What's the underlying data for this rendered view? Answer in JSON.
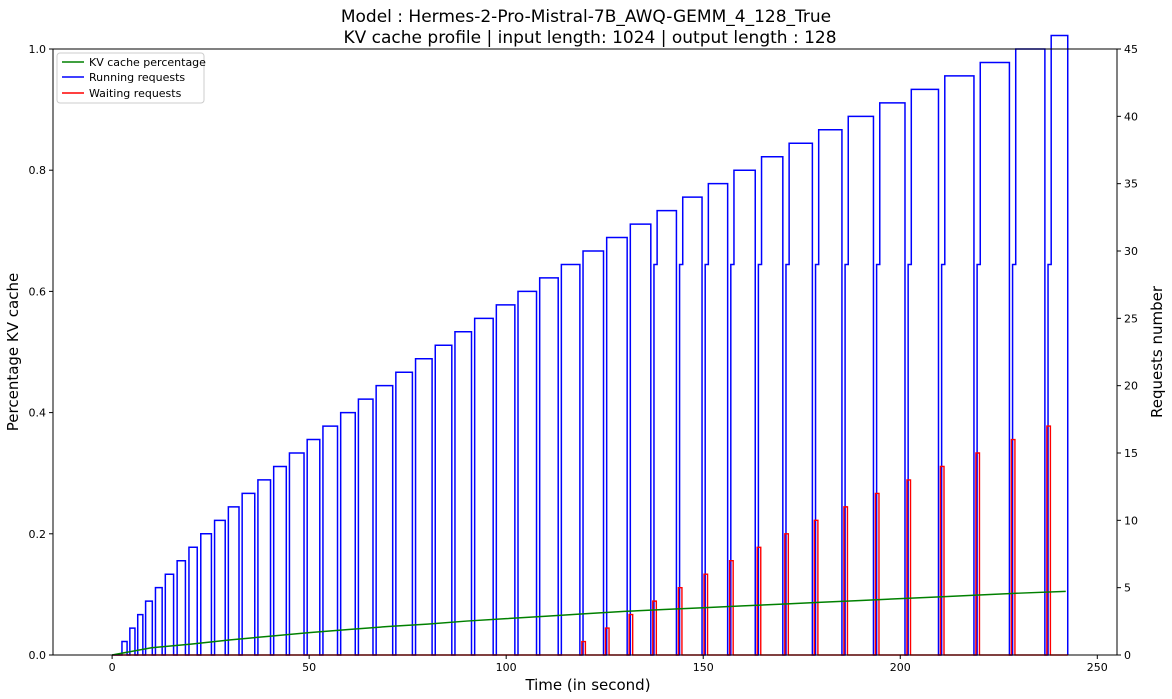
{
  "chart_data": {
    "type": "line",
    "title": "Model : Hermes-2-Pro-Mistral-7B_AWQ-GEMM_4_128_True",
    "subtitle": "KV cache profile | input length: 1024 | output length : 128",
    "xlabel": "Time (in second)",
    "ylabel_left": "Percentage KV cache",
    "ylabel_right": "Requests number",
    "xlim": [
      -15,
      255
    ],
    "ylim_left": [
      0,
      1.0
    ],
    "ylim_right": [
      0,
      45
    ],
    "xticks": [
      "0",
      "50",
      "100",
      "150",
      "200",
      "250"
    ],
    "yticks_left": [
      "0.0",
      "0.2",
      "0.4",
      "0.6",
      "0.8",
      "1.0"
    ],
    "yticks_right": [
      "0",
      "5",
      "10",
      "15",
      "20",
      "25",
      "30",
      "35",
      "40",
      "45"
    ],
    "grid": false,
    "legend_position": "top-left",
    "legend": [
      "KV cache percentage",
      "Running requests",
      "Waiting requests"
    ],
    "colors": {
      "kv": "#008000",
      "running": "#0000ff",
      "waiting": "#ff0000"
    },
    "burst_start_times": [
      2.5,
      4.5,
      6.5,
      8.5,
      11.0,
      13.5,
      16.5,
      19.5,
      22.5,
      26.0,
      29.5,
      33.0,
      37.0,
      41.0,
      45.0,
      49.5,
      53.5,
      58.0,
      62.5,
      67.0,
      72.0,
      77.0,
      82.0,
      87.0,
      92.0,
      97.5,
      103.0,
      108.5,
      114.0,
      119.5,
      125.5,
      131.5,
      137.5,
      144.0,
      150.5,
      157.0,
      164.0,
      171.0,
      178.5,
      186.0,
      194.0,
      202.0,
      210.5,
      219.5,
      228.5,
      237.5
    ],
    "burst_end_times": [
      3.8,
      5.8,
      7.8,
      10.2,
      12.7,
      15.6,
      18.6,
      21.6,
      25.2,
      28.7,
      32.2,
      36.2,
      40.2,
      44.2,
      48.7,
      52.7,
      57.2,
      61.7,
      66.2,
      71.2,
      76.2,
      81.2,
      86.2,
      91.2,
      96.7,
      102.2,
      107.7,
      113.2,
      118.7,
      124.7,
      130.7,
      136.7,
      143.2,
      149.7,
      156.2,
      163.2,
      170.2,
      177.7,
      185.2,
      193.2,
      201.2,
      209.7,
      218.7,
      227.7,
      236.7,
      242.5
    ],
    "running_requests_peaks": [
      1,
      2,
      3,
      4,
      5,
      6,
      7,
      8,
      9,
      10,
      11,
      12,
      13,
      14,
      15,
      16,
      17,
      18,
      19,
      20,
      21,
      22,
      23,
      24,
      25,
      26,
      27,
      28,
      29,
      30,
      31,
      32,
      33,
      34,
      35,
      36,
      37,
      38,
      39,
      40,
      41,
      42,
      43,
      44,
      45,
      46
    ],
    "running_requests_pre_step": [
      0,
      0,
      0,
      0,
      0,
      0,
      0,
      0,
      0,
      0,
      0,
      0,
      0,
      0,
      0,
      0,
      0,
      0,
      0,
      0,
      0,
      0,
      0,
      0,
      0,
      0,
      0,
      0,
      0,
      0,
      0,
      0,
      29,
      29,
      29,
      29,
      29,
      29,
      29,
      29,
      29,
      29,
      29,
      29,
      29,
      29
    ],
    "waiting_requests_peaks": [
      0,
      0,
      0,
      0,
      0,
      0,
      0,
      0,
      0,
      0,
      0,
      0,
      0,
      0,
      0,
      0,
      0,
      0,
      0,
      0,
      0,
      0,
      0,
      0,
      0,
      0,
      0,
      0,
      0,
      1,
      2,
      3,
      4,
      5,
      6,
      7,
      8,
      9,
      10,
      11,
      12,
      13,
      14,
      15,
      16,
      17
    ],
    "kv_cache_percentage": {
      "x": [
        0,
        10,
        20,
        30,
        40,
        50,
        60,
        70,
        80,
        90,
        100,
        110,
        120,
        130,
        140,
        150,
        160,
        170,
        180,
        190,
        200,
        210,
        220,
        230,
        242
      ],
      "y": [
        0.0,
        0.012,
        0.018,
        0.025,
        0.031,
        0.037,
        0.042,
        0.047,
        0.051,
        0.056,
        0.06,
        0.064,
        0.068,
        0.072,
        0.075,
        0.078,
        0.081,
        0.084,
        0.087,
        0.09,
        0.093,
        0.096,
        0.099,
        0.102,
        0.105
      ]
    }
  }
}
